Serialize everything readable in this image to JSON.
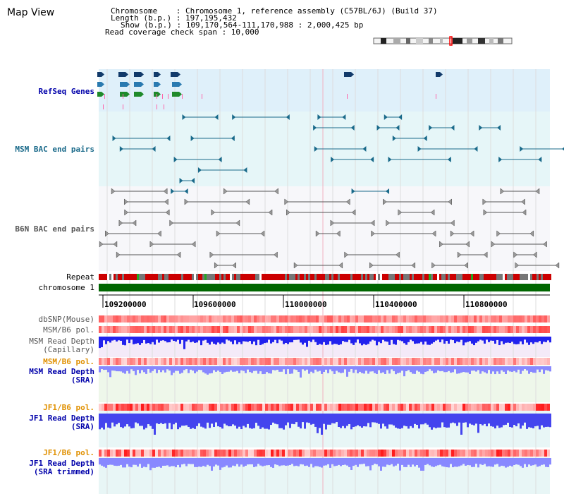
{
  "title": "Map View",
  "info": {
    "chromosome": "Chromosome    : Chromosome 1, reference assembly (C57BL/6J) (Build 37)",
    "length": "Length (b.p.) : 197,195,432",
    "show": "Show (b.p.) : 109,170,564-111,170,988 : 2,000,425 bp",
    "coverage": "Read coverage check span : 10,000"
  },
  "tracks": {
    "refseq": "RefSeq Genes",
    "msm_bac": "MSM BAC end pairs",
    "b6n_bac": "B6N BAC end pairs",
    "repeat": "Repeat",
    "chromosome": "chromosome 1",
    "dbsnp": "dbSNP(Mouse)",
    "msm_b6_pol": "MSM/B6 pol.",
    "msm_read_cap_1": "MSM Read Depth",
    "msm_read_cap_2": "(Capillary)",
    "msm_b6_pol_2": "MSM/B6 pol.",
    "msm_read_sra_1": "MSM Read Depth",
    "msm_read_sra_2": "(SRA)",
    "jf1_pol_1": "JF1/B6 pol.",
    "jf1_read_sra_1": "JF1 Read Depth",
    "jf1_read_sra_2": "(SRA)",
    "jf1_pol_2": "JF1/B6 pol.",
    "jf1_read_trim_1": "JF1 Read Depth",
    "jf1_read_trim_2": "(SRA trimmed)"
  },
  "axis_ticks": [
    "109200000",
    "109600000",
    "110000000",
    "110400000",
    "110800000"
  ],
  "colors": {
    "refseq_bg": "#dff0fa",
    "msm_bg": "#e6f6f8",
    "b6n_bg": "#f7f7fa",
    "chrom_green": "#006600",
    "repeat_red": "#cc0000",
    "depth_blue": "#2222ee",
    "depth_light": "#8888ff",
    "pol_red": "#ee3333"
  }
}
